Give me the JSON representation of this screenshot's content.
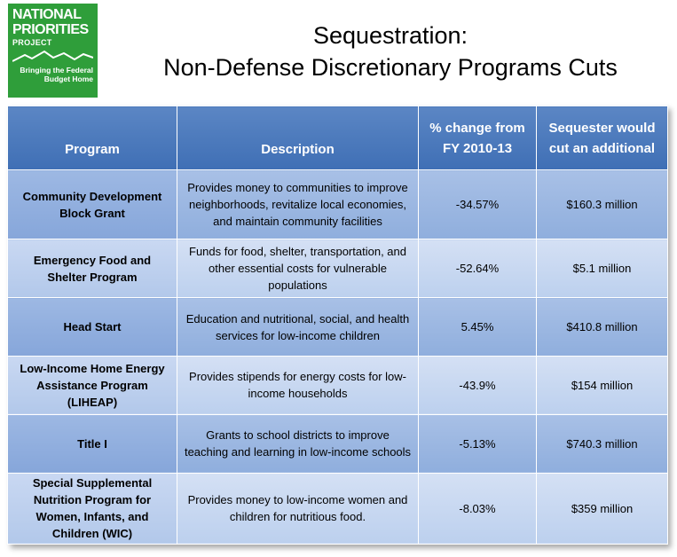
{
  "logo": {
    "line1": "NATIONAL",
    "line2": "PRIORITIES",
    "line3": "PROJECT",
    "tagline": "Bringing the Federal Budget Home"
  },
  "title": {
    "line1": "Sequestration:",
    "line2": "Non-Defense Discretionary Programs Cuts"
  },
  "table": {
    "headers": [
      "Program",
      "Description",
      "% change from FY 2010-13",
      "Sequester would cut an additional"
    ],
    "rows": [
      {
        "program": "Community Development Block Grant",
        "description": "Provides money to communities to improve neighborhoods, revitalize local economies, and maintain community facilities",
        "change": "-34.57%",
        "cut": "$160.3 million"
      },
      {
        "program": "Emergency Food and Shelter Program",
        "description": "Funds for food, shelter, transportation, and other essential costs for vulnerable populations",
        "change": "-52.64%",
        "cut": "$5.1 million"
      },
      {
        "program": "Head Start",
        "description": "Education and nutritional, social, and health services for low-income children",
        "change": "5.45%",
        "cut": "$410.8 million"
      },
      {
        "program": "Low-Income Home Energy Assistance Program (LIHEAP)",
        "description": "Provides stipends for energy costs for low-income households",
        "change": "-43.9%",
        "cut": "$154 million"
      },
      {
        "program": "Title I",
        "description": "Grants to school districts to improve teaching and learning in low-income schools",
        "change": "-5.13%",
        "cut": "$740.3 million"
      },
      {
        "program": "Special Supplemental Nutrition Program for Women, Infants, and Children (WIC)",
        "description": "Provides money to low-income women and children for nutritious food.",
        "change": "-8.03%",
        "cut": "$359 million"
      }
    ]
  },
  "colors": {
    "logo_green": "#2f9e3a",
    "header_blue": "#4a78bc",
    "row_dark": "#9db8e3",
    "row_light": "#c9d8f2"
  }
}
